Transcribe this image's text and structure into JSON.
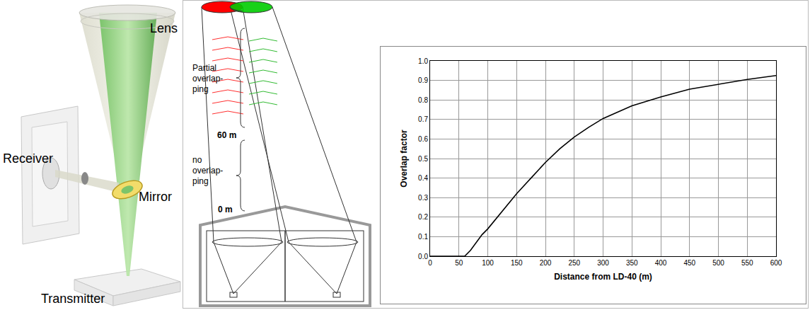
{
  "chart_data": {
    "type": "line",
    "x": [
      0,
      25,
      50,
      60,
      70,
      80,
      90,
      100,
      125,
      150,
      175,
      200,
      225,
      250,
      275,
      300,
      350,
      400,
      450,
      500,
      550,
      600
    ],
    "values": [
      0,
      0,
      0,
      0,
      0.03,
      0.07,
      0.11,
      0.14,
      0.23,
      0.32,
      0.4,
      0.48,
      0.55,
      0.61,
      0.66,
      0.705,
      0.77,
      0.815,
      0.855,
      0.88,
      0.905,
      0.925
    ],
    "color": "#000000",
    "x_label": "Distance from LD-40 (m)",
    "y_label": "Overlap factor",
    "xlim": [
      0,
      600
    ],
    "ylim": [
      0,
      1
    ],
    "xticks": [
      0,
      50,
      100,
      150,
      200,
      250,
      300,
      350,
      400,
      450,
      500,
      550,
      600
    ],
    "yticks": [
      {
        "value": 0,
        "label": "0.0"
      },
      {
        "value": 0.1,
        "label": "0.1"
      },
      {
        "value": 0.2,
        "label": "0.2"
      },
      {
        "value": 0.3,
        "label": "0.3"
      },
      {
        "value": 0.4,
        "label": "0.4"
      },
      {
        "value": 0.5,
        "label": "0.5"
      },
      {
        "value": 0.6,
        "label": "0.6"
      },
      {
        "value": 0.7,
        "label": "0.7"
      },
      {
        "value": 0.8,
        "label": "0.8"
      },
      {
        "value": 0.9,
        "label": "0.9"
      },
      {
        "value": 1,
        "label": "1.0"
      }
    ],
    "grid": true
  },
  "schematic": {
    "labels": {
      "lens": "Lens",
      "receiver": "Receiver",
      "mirror": "Mirror",
      "transmitter": "Transmitter"
    }
  },
  "overlap_diagram": {
    "partial_overlapping": [
      "Partial",
      "overlap-",
      "ping"
    ],
    "no_overlapping": [
      "no",
      "overlap-",
      "ping"
    ],
    "distance_top": "60 m",
    "distance_bottom": "0 m"
  }
}
